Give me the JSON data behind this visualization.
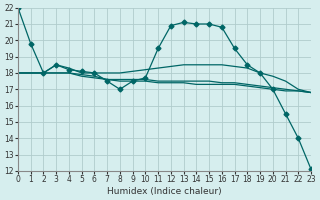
{
  "xlabel": "Humidex (Indice chaleur)",
  "bg_color": "#d6eeee",
  "grid_color": "#b0cccc",
  "line_color": "#006666",
  "xlim": [
    0,
    23
  ],
  "ylim": [
    12,
    22
  ],
  "x_ticks": [
    0,
    1,
    2,
    3,
    4,
    5,
    6,
    7,
    8,
    9,
    10,
    11,
    12,
    13,
    14,
    15,
    16,
    17,
    18,
    19,
    20,
    21,
    22,
    23
  ],
  "y_ticks": [
    12,
    13,
    14,
    15,
    16,
    17,
    18,
    19,
    20,
    21,
    22
  ],
  "series": [
    [
      22,
      19.8,
      18.0,
      18.5,
      18.2,
      18.1,
      18.0,
      17.5,
      17.0,
      17.5,
      17.7,
      19.5,
      20.9,
      21.1,
      21.0,
      21.0,
      20.8,
      19.5,
      18.5,
      18.0,
      17.0,
      15.5,
      14.0,
      12.1
    ],
    [
      18.0,
      18.0,
      18.0,
      18.5,
      18.3,
      18.0,
      18.0,
      18.0,
      18.0,
      18.1,
      18.2,
      18.3,
      18.4,
      18.5,
      18.5,
      18.5,
      18.5,
      18.4,
      18.3,
      18.0,
      17.8,
      17.5,
      17.0,
      16.8
    ],
    [
      18.0,
      18.0,
      18.0,
      18.0,
      18.0,
      17.8,
      17.7,
      17.6,
      17.6,
      17.6,
      17.6,
      17.5,
      17.5,
      17.5,
      17.5,
      17.5,
      17.4,
      17.4,
      17.3,
      17.2,
      17.1,
      17.0,
      16.9,
      16.8
    ],
    [
      18.0,
      18.0,
      18.0,
      18.0,
      18.0,
      17.9,
      17.8,
      17.6,
      17.5,
      17.5,
      17.5,
      17.4,
      17.4,
      17.4,
      17.3,
      17.3,
      17.3,
      17.3,
      17.2,
      17.1,
      17.0,
      16.9,
      16.9,
      16.8
    ]
  ],
  "marker_series": [
    0
  ]
}
